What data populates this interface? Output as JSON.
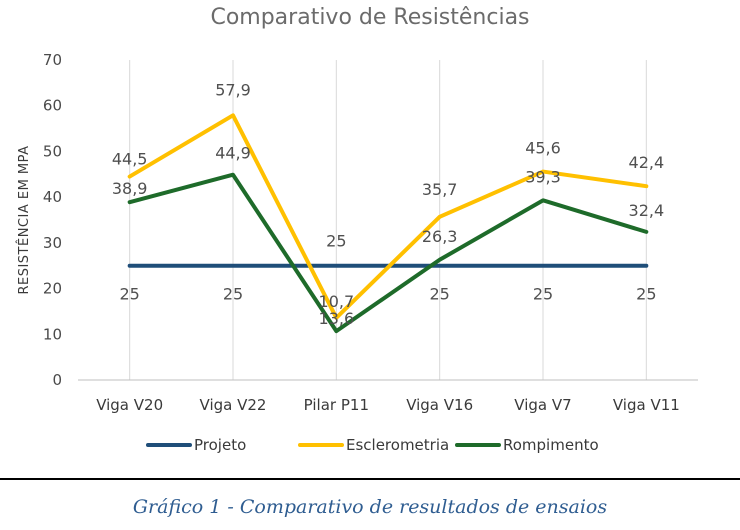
{
  "chart_data": {
    "type": "line",
    "title": "Comparativo de Resistências",
    "ylabel": "RESISTÊNCIA EM MPA",
    "xlabel": "",
    "categories": [
      "Viga V20",
      "Viga V22",
      "Pilar P11",
      "Viga V16",
      "Viga V7",
      "Viga V11"
    ],
    "ylim": [
      0,
      70
    ],
    "yticks": [
      0,
      10,
      20,
      30,
      40,
      50,
      60,
      70
    ],
    "grid": "vertical",
    "legend_position": "bottom",
    "series": [
      {
        "name": "Projeto",
        "color": "#1f4e79",
        "values": [
          25,
          25,
          25,
          25,
          25,
          25
        ],
        "labels": [
          "25",
          "25",
          "25",
          "25",
          "25",
          "25"
        ]
      },
      {
        "name": "Esclerometria",
        "color": "#ffc000",
        "values": [
          44.5,
          57.9,
          13.6,
          35.7,
          45.6,
          42.4
        ],
        "labels": [
          "44,5",
          "57,9",
          "13,6",
          "35,7",
          "45,6",
          "42,4"
        ]
      },
      {
        "name": "Rompimento",
        "color": "#1e6b2a",
        "values": [
          38.9,
          44.9,
          10.7,
          26.3,
          39.3,
          32.4
        ],
        "labels": [
          "38,9",
          "44,9",
          "10,7",
          "26,3",
          "39,3",
          "32,4"
        ]
      }
    ]
  },
  "caption": "Gráfico 1 - Comparativo de resultados de ensaios"
}
